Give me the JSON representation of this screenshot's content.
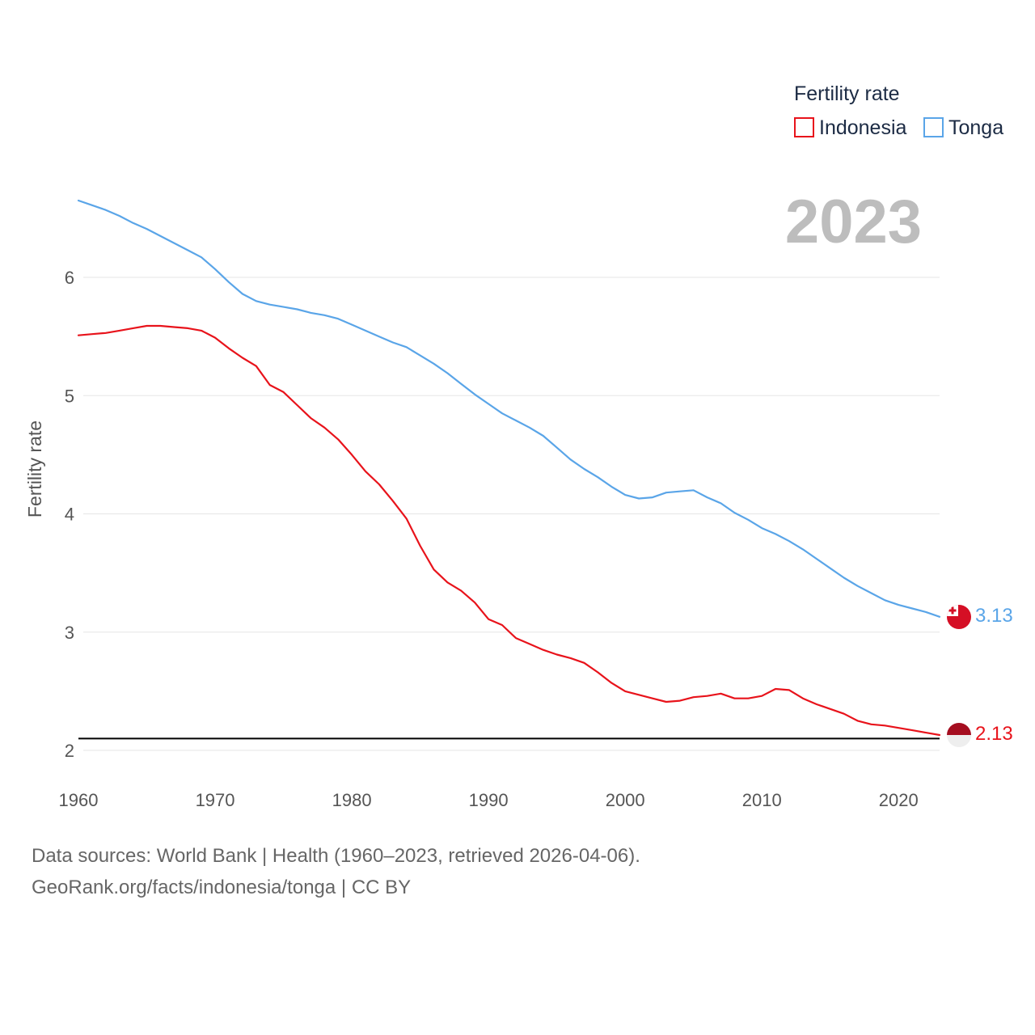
{
  "chart_data": {
    "type": "line",
    "title": "",
    "ylabel": "Fertility rate",
    "xlabel": "",
    "xlim": [
      1960,
      2023
    ],
    "ylim": [
      2,
      6.65
    ],
    "yticks": [
      2,
      3,
      4,
      5,
      6
    ],
    "xticks": [
      1960,
      1970,
      1980,
      1990,
      2000,
      2010,
      2020
    ],
    "reference_line": 2.1,
    "year_label": "2023",
    "legend": {
      "title": "Fertility rate",
      "position": "top-right"
    },
    "x": [
      1960,
      1961,
      1962,
      1963,
      1964,
      1965,
      1966,
      1967,
      1968,
      1969,
      1970,
      1971,
      1972,
      1973,
      1974,
      1975,
      1976,
      1977,
      1978,
      1979,
      1980,
      1981,
      1982,
      1983,
      1984,
      1985,
      1986,
      1987,
      1988,
      1989,
      1990,
      1991,
      1992,
      1993,
      1994,
      1995,
      1996,
      1997,
      1998,
      1999,
      2000,
      2001,
      2002,
      2003,
      2004,
      2005,
      2006,
      2007,
      2008,
      2009,
      2010,
      2011,
      2012,
      2013,
      2014,
      2015,
      2016,
      2017,
      2018,
      2019,
      2020,
      2021,
      2022,
      2023
    ],
    "series": [
      {
        "name": "Indonesia",
        "color": "#e8131b",
        "end_label": "2.13",
        "values": [
          5.51,
          5.52,
          5.53,
          5.55,
          5.57,
          5.59,
          5.59,
          5.58,
          5.57,
          5.55,
          5.49,
          5.4,
          5.32,
          5.25,
          5.09,
          5.03,
          4.92,
          4.81,
          4.73,
          4.63,
          4.5,
          4.36,
          4.25,
          4.11,
          3.96,
          3.73,
          3.53,
          3.42,
          3.35,
          3.25,
          3.11,
          3.06,
          2.95,
          2.9,
          2.85,
          2.81,
          2.78,
          2.74,
          2.66,
          2.57,
          2.5,
          2.47,
          2.44,
          2.41,
          2.42,
          2.45,
          2.46,
          2.48,
          2.44,
          2.44,
          2.46,
          2.52,
          2.51,
          2.44,
          2.39,
          2.35,
          2.31,
          2.25,
          2.22,
          2.21,
          2.19,
          2.17,
          2.15,
          2.13
        ]
      },
      {
        "name": "Tonga",
        "color": "#5aa5e8",
        "end_label": "3.13",
        "values": [
          6.65,
          6.61,
          6.57,
          6.52,
          6.46,
          6.41,
          6.35,
          6.29,
          6.23,
          6.17,
          6.07,
          5.96,
          5.86,
          5.8,
          5.77,
          5.75,
          5.73,
          5.7,
          5.68,
          5.65,
          5.6,
          5.55,
          5.5,
          5.45,
          5.41,
          5.34,
          5.27,
          5.19,
          5.1,
          5.01,
          4.93,
          4.85,
          4.79,
          4.73,
          4.66,
          4.56,
          4.46,
          4.38,
          4.31,
          4.23,
          4.16,
          4.13,
          4.14,
          4.18,
          4.19,
          4.2,
          4.14,
          4.09,
          4.01,
          3.95,
          3.88,
          3.83,
          3.77,
          3.7,
          3.62,
          3.54,
          3.46,
          3.39,
          3.33,
          3.27,
          3.23,
          3.2,
          3.17,
          3.13
        ]
      }
    ]
  },
  "footer": {
    "line1": "Data sources: World Bank | Health (1960–2023, retrieved 2026-04-06).",
    "line2": "GeoRank.org/facts/indonesia/tonga | CC BY"
  }
}
